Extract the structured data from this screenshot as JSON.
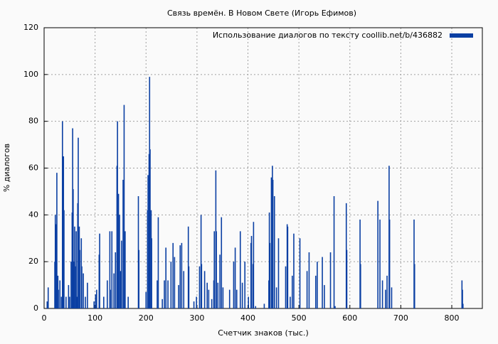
{
  "chart_data": {
    "type": "impulse",
    "title": "Связь времён. В Новом Свете (Игорь Ефимов)",
    "xlabel": "Счетчик знаков (тыс.)",
    "ylabel": "% диалогов",
    "x": [
      6,
      8,
      21,
      22,
      24,
      25,
      27,
      28,
      31,
      34,
      36,
      38,
      39,
      43,
      48,
      50,
      53,
      55,
      56,
      57,
      59,
      60,
      62,
      63,
      64,
      66,
      67,
      69,
      70,
      73,
      74,
      77,
      81,
      85,
      98,
      101,
      103,
      108,
      109,
      117,
      124,
      129,
      130,
      133,
      137,
      140,
      143,
      144,
      146,
      148,
      150,
      152,
      155,
      157,
      159,
      165,
      185,
      186,
      200,
      203,
      204,
      206,
      207,
      208,
      210,
      211,
      222,
      224,
      232,
      236,
      239,
      243,
      249,
      253,
      256,
      264,
      267,
      270,
      274,
      283,
      284,
      294,
      299,
      305,
      308,
      309,
      315,
      320,
      323,
      329,
      333,
      334,
      337,
      338,
      341,
      345,
      348,
      351,
      364,
      372,
      375,
      378,
      385,
      389,
      394,
      401,
      406,
      407,
      410,
      411,
      415,
      432,
      441,
      442,
      443,
      446,
      448,
      449,
      452,
      456,
      460,
      474,
      477,
      478,
      483,
      487,
      490,
      502,
      516,
      520,
      533,
      536,
      546,
      550,
      562,
      569,
      571,
      593,
      594,
      620,
      621,
      655,
      659,
      664,
      670,
      673,
      677,
      678,
      682,
      726,
      727,
      820,
      821,
      822
    ],
    "series": [
      {
        "name": "Использование диалогов по тексту  coollib.net/b/436882",
        "color": "#0a3fa3",
        "values": [
          3,
          9,
          20,
          40,
          36,
          58,
          14,
          8,
          12,
          5,
          80,
          65,
          42,
          5,
          10,
          5,
          20,
          41,
          77,
          51,
          20,
          35,
          18,
          33,
          5,
          45,
          73,
          35,
          25,
          30,
          18,
          15,
          5,
          11,
          3,
          6,
          8,
          23,
          32,
          5,
          12,
          33,
          8,
          33,
          15,
          24,
          61,
          80,
          49,
          40,
          16,
          29,
          55,
          87,
          33,
          5,
          48,
          25,
          7,
          42,
          57,
          66,
          99,
          68,
          42,
          30,
          12,
          39,
          4,
          12,
          26,
          12,
          20,
          28,
          22,
          10,
          27,
          28,
          16,
          35,
          18,
          3,
          5,
          18,
          40,
          19,
          16,
          11,
          8,
          4,
          12,
          33,
          59,
          33,
          11,
          23,
          39,
          9,
          8,
          20,
          26,
          8,
          33,
          11,
          20,
          5,
          28,
          31,
          19,
          37,
          1,
          2,
          12,
          41,
          28,
          56,
          61,
          55,
          48,
          9,
          30,
          18,
          36,
          35,
          5,
          14,
          32,
          30,
          16,
          24,
          14,
          20,
          22,
          10,
          24,
          48,
          1,
          45,
          25,
          38,
          19,
          46,
          38,
          12,
          8,
          14,
          61,
          38,
          9,
          38,
          19,
          12,
          8,
          2
        ]
      }
    ],
    "xlim": [
      0,
      860
    ],
    "ylim": [
      0,
      120
    ],
    "xticks": [
      0,
      100,
      200,
      300,
      400,
      500,
      600,
      700,
      800
    ],
    "yticks": [
      0,
      20,
      40,
      60,
      80,
      100,
      120
    ],
    "grid": true,
    "legend": "top-right"
  }
}
